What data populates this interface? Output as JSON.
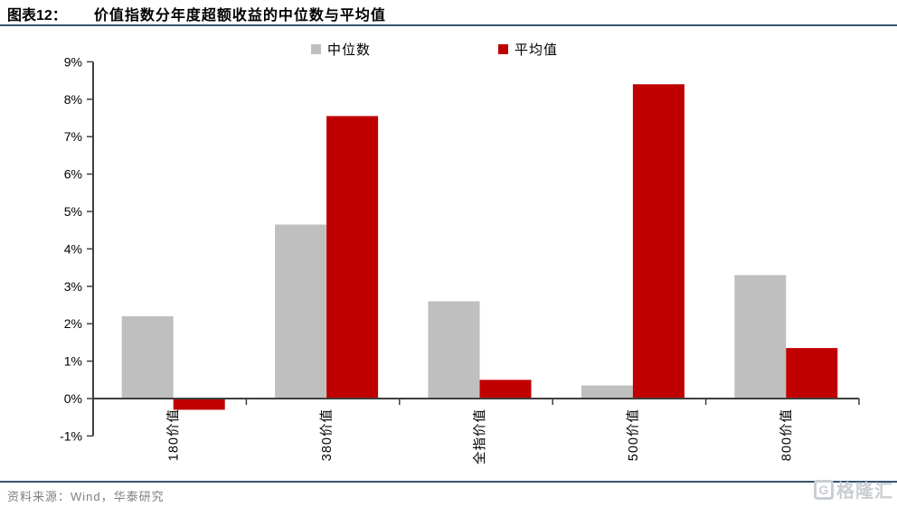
{
  "header": {
    "figure_label": "图表12：",
    "title": "价值指数分年度超额收益的中位数与平均值"
  },
  "chart_data": {
    "type": "bar",
    "title": "价值指数分年度超额收益的中位数与平均值",
    "categories": [
      "180价值",
      "380价值",
      "全指价值",
      "500价值",
      "800价值"
    ],
    "series": [
      {
        "name": "中位数",
        "color": "#BFBFBF",
        "values": [
          2.2,
          4.65,
          2.6,
          0.35,
          3.3
        ]
      },
      {
        "name": "平均值",
        "color": "#C00000",
        "values": [
          -0.3,
          7.55,
          0.5,
          8.4,
          1.35
        ]
      }
    ],
    "ylim": [
      -1,
      9
    ],
    "ytick_step": 1,
    "ytick_suffix": "%",
    "xlabel": "",
    "ylabel": "",
    "grid": false,
    "legend_position": "top"
  },
  "colors": {
    "rule": "#33536e",
    "axis": "#3f3f3f",
    "source_text": "#7f7f7f",
    "watermark": "#c9ced3"
  },
  "footer": {
    "source": "资料来源：Wind，华泰研究",
    "watermark_text": "格隆汇",
    "watermark_icon": "G"
  }
}
